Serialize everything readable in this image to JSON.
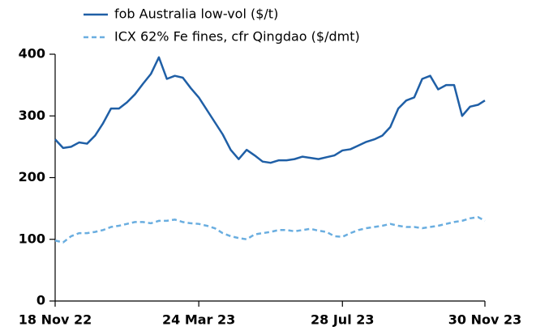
{
  "chart_data": {
    "type": "line",
    "x": [
      "2022-11-18",
      "2022-11-25",
      "2022-12-02",
      "2022-12-09",
      "2022-12-16",
      "2022-12-23",
      "2022-12-30",
      "2023-01-06",
      "2023-01-13",
      "2023-01-20",
      "2023-01-27",
      "2023-02-03",
      "2023-02-10",
      "2023-02-17",
      "2023-02-24",
      "2023-03-03",
      "2023-03-10",
      "2023-03-17",
      "2023-03-24",
      "2023-03-31",
      "2023-04-07",
      "2023-04-14",
      "2023-04-21",
      "2023-04-28",
      "2023-05-05",
      "2023-05-12",
      "2023-05-19",
      "2023-05-26",
      "2023-06-02",
      "2023-06-09",
      "2023-06-16",
      "2023-06-23",
      "2023-06-30",
      "2023-07-07",
      "2023-07-14",
      "2023-07-21",
      "2023-07-28",
      "2023-08-04",
      "2023-08-11",
      "2023-08-18",
      "2023-08-25",
      "2023-09-01",
      "2023-09-08",
      "2023-09-15",
      "2023-09-22",
      "2023-09-29",
      "2023-10-06",
      "2023-10-13",
      "2023-10-20",
      "2023-10-27",
      "2023-11-03",
      "2023-11-10",
      "2023-11-17",
      "2023-11-24",
      "2023-11-30"
    ],
    "series": [
      {
        "name": "fob Australia low-vol ($/t)",
        "color": "#1f5fa6",
        "dashed": false,
        "values": [
          262,
          248,
          250,
          257,
          255,
          268,
          288,
          312,
          312,
          322,
          335,
          352,
          368,
          395,
          360,
          365,
          362,
          345,
          330,
          310,
          290,
          270,
          245,
          230,
          245,
          236,
          226,
          224,
          228,
          228,
          230,
          234,
          232,
          230,
          233,
          236,
          244,
          246,
          252,
          258,
          262,
          268,
          282,
          312,
          325,
          330,
          360,
          365,
          343,
          350,
          350,
          300,
          315,
          318,
          325
        ]
      },
      {
        "name": "ICX 62% Fe fines, cfr Qingdao ($/dmt)",
        "color": "#6aaee0",
        "dashed": true,
        "values": [
          98,
          95,
          105,
          110,
          110,
          112,
          115,
          120,
          122,
          125,
          128,
          128,
          126,
          130,
          130,
          132,
          128,
          126,
          125,
          122,
          118,
          110,
          105,
          102,
          100,
          108,
          110,
          112,
          115,
          115,
          113,
          115,
          117,
          114,
          112,
          105,
          104,
          110,
          115,
          118,
          120,
          122,
          125,
          122,
          120,
          120,
          118,
          120,
          122,
          125,
          128,
          130,
          134,
          136,
          130
        ]
      }
    ],
    "xlim": [
      "2022-11-18",
      "2023-11-30"
    ],
    "xticks": [
      {
        "value": "2022-11-18",
        "label": "18 Nov 22"
      },
      {
        "value": "2023-03-24",
        "label": "24 Mar 23"
      },
      {
        "value": "2023-07-28",
        "label": "28 Jul 23"
      },
      {
        "value": "2023-11-30",
        "label": "30 Nov 23"
      }
    ],
    "ylim": [
      0,
      400
    ],
    "yticks": [
      0,
      100,
      200,
      300,
      400
    ]
  }
}
